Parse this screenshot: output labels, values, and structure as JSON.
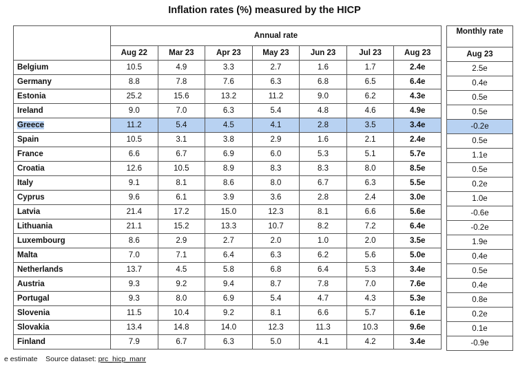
{
  "title": "Inflation rates (%) measured by the HICP",
  "annual_header": "Annual rate",
  "monthly_header": "Monthly rate",
  "columns": [
    "Aug 22",
    "Mar 23",
    "Apr 23",
    "May 23",
    "Jun 23",
    "Jul 23",
    "Aug 23"
  ],
  "monthly_column": "Aug 23",
  "rows": [
    {
      "country": "Belgium",
      "values": [
        "10.5",
        "4.9",
        "3.3",
        "2.7",
        "1.6",
        "1.7",
        "2.4e"
      ],
      "monthly": "2.5e"
    },
    {
      "country": "Germany",
      "values": [
        "8.8",
        "7.8",
        "7.6",
        "6.3",
        "6.8",
        "6.5",
        "6.4e"
      ],
      "monthly": "0.4e"
    },
    {
      "country": "Estonia",
      "values": [
        "25.2",
        "15.6",
        "13.2",
        "11.2",
        "9.0",
        "6.2",
        "4.3e"
      ],
      "monthly": "0.5e"
    },
    {
      "country": "Ireland",
      "values": [
        "9.0",
        "7.0",
        "6.3",
        "5.4",
        "4.8",
        "4.6",
        "4.9e"
      ],
      "monthly": "0.5e"
    },
    {
      "country": "Greece",
      "values": [
        "11.2",
        "5.4",
        "4.5",
        "4.1",
        "2.8",
        "3.5",
        "3.4e"
      ],
      "monthly": "-0.2e"
    },
    {
      "country": "Spain",
      "values": [
        "10.5",
        "3.1",
        "3.8",
        "2.9",
        "1.6",
        "2.1",
        "2.4e"
      ],
      "monthly": "0.5e"
    },
    {
      "country": "France",
      "values": [
        "6.6",
        "6.7",
        "6.9",
        "6.0",
        "5.3",
        "5.1",
        "5.7e"
      ],
      "monthly": "1.1e"
    },
    {
      "country": "Croatia",
      "values": [
        "12.6",
        "10.5",
        "8.9",
        "8.3",
        "8.3",
        "8.0",
        "8.5e"
      ],
      "monthly": "0.5e"
    },
    {
      "country": "Italy",
      "values": [
        "9.1",
        "8.1",
        "8.6",
        "8.0",
        "6.7",
        "6.3",
        "5.5e"
      ],
      "monthly": "0.2e"
    },
    {
      "country": "Cyprus",
      "values": [
        "9.6",
        "6.1",
        "3.9",
        "3.6",
        "2.8",
        "2.4",
        "3.0e"
      ],
      "monthly": "1.0e"
    },
    {
      "country": "Latvia",
      "values": [
        "21.4",
        "17.2",
        "15.0",
        "12.3",
        "8.1",
        "6.6",
        "5.6e"
      ],
      "monthly": "-0.6e"
    },
    {
      "country": "Lithuania",
      "values": [
        "21.1",
        "15.2",
        "13.3",
        "10.7",
        "8.2",
        "7.2",
        "6.4e"
      ],
      "monthly": "-0.2e"
    },
    {
      "country": "Luxembourg",
      "values": [
        "8.6",
        "2.9",
        "2.7",
        "2.0",
        "1.0",
        "2.0",
        "3.5e"
      ],
      "monthly": "1.9e"
    },
    {
      "country": "Malta",
      "values": [
        "7.0",
        "7.1",
        "6.4",
        "6.3",
        "6.2",
        "5.6",
        "5.0e"
      ],
      "monthly": "0.4e"
    },
    {
      "country": "Netherlands",
      "values": [
        "13.7",
        "4.5",
        "5.8",
        "6.8",
        "6.4",
        "5.3",
        "3.4e"
      ],
      "monthly": "0.5e"
    },
    {
      "country": "Austria",
      "values": [
        "9.3",
        "9.2",
        "9.4",
        "8.7",
        "7.8",
        "7.0",
        "7.6e"
      ],
      "monthly": "0.4e"
    },
    {
      "country": "Portugal",
      "values": [
        "9.3",
        "8.0",
        "6.9",
        "5.4",
        "4.7",
        "4.3",
        "5.3e"
      ],
      "monthly": "0.8e"
    },
    {
      "country": "Slovenia",
      "values": [
        "11.5",
        "10.4",
        "9.2",
        "8.1",
        "6.6",
        "5.7",
        "6.1e"
      ],
      "monthly": "0.2e"
    },
    {
      "country": "Slovakia",
      "values": [
        "13.4",
        "14.8",
        "14.0",
        "12.3",
        "11.3",
        "10.3",
        "9.6e"
      ],
      "monthly": "0.1e"
    },
    {
      "country": "Finland",
      "values": [
        "7.9",
        "6.7",
        "6.3",
        "5.0",
        "4.1",
        "4.2",
        "3.4e"
      ],
      "monthly": "-0.9e"
    }
  ],
  "highlighted_row": "Greece",
  "highlight_color": "#b8d2f2",
  "footer": {
    "note": "e estimate",
    "source_label": "Source dataset:",
    "source_link": "prc_hicp_manr"
  }
}
